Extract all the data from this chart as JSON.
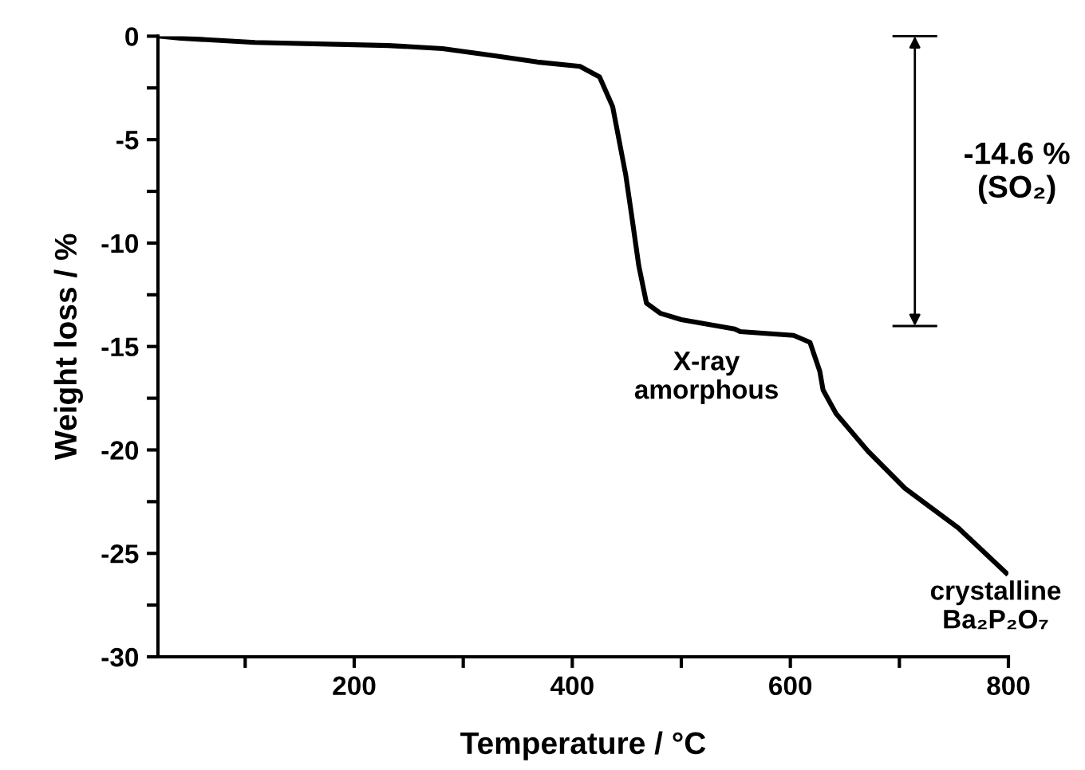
{
  "chart_data": {
    "type": "line",
    "xlabel": "Temperature / °C",
    "ylabel": "Weight loss / %",
    "x": [
      21.5,
      41,
      109,
      231,
      281,
      329,
      368,
      407,
      425,
      437,
      449,
      454,
      461,
      468,
      481,
      500,
      549,
      554,
      603,
      618,
      627,
      630,
      642,
      671,
      705,
      754,
      798
    ],
    "series": [
      {
        "color": "#000000",
        "values": [
          0,
          -0.1,
          -0.3,
          -0.45,
          -0.6,
          -0.95,
          -1.25,
          -1.46,
          -1.97,
          -3.4,
          -6.7,
          -8.5,
          -11.1,
          -12.9,
          -13.4,
          -13.7,
          -14.15,
          -14.28,
          -14.46,
          -14.8,
          -16.2,
          -17.1,
          -18.25,
          -20.05,
          -21.85,
          -23.77,
          -25.95
        ]
      }
    ],
    "xlim": [
      20,
      800
    ],
    "xticks": [
      {
        "value": 100,
        "label": null
      },
      200,
      {
        "value": 300,
        "label": null
      },
      400,
      {
        "value": 500,
        "label": null
      },
      600,
      {
        "value": 700,
        "label": null
      },
      800
    ],
    "ylim": [
      -30,
      0
    ],
    "yticks": [
      {
        "value": -30,
        "label": "-30"
      },
      {
        "value": -27.5,
        "label": null
      },
      {
        "value": -25,
        "label": "-25"
      },
      {
        "value": -22.5,
        "label": null
      },
      {
        "value": -20,
        "label": "-20"
      },
      {
        "value": -17.5,
        "label": null
      },
      {
        "value": -15,
        "label": "-15"
      },
      {
        "value": -12.5,
        "label": null
      },
      {
        "value": -10,
        "label": "-10"
      },
      {
        "value": -7.5,
        "label": null
      },
      {
        "value": -5,
        "label": "-5"
      },
      {
        "value": -2.5,
        "label": null
      },
      0
    ],
    "annotations": [
      "-14.6 %\n(SO₂)",
      "X-ray\namorphous",
      "crystalline\nBa₂P₂O₇"
    ],
    "grid": false,
    "marker": "none",
    "line_style": "solid"
  }
}
